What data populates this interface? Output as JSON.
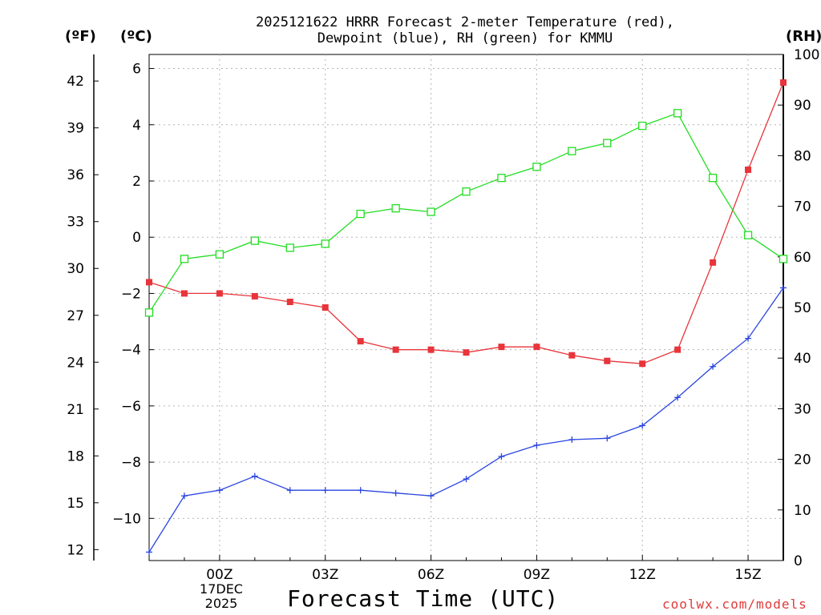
{
  "chart_data": {
    "type": "line",
    "title_line1": "2025121622 HRRR Forecast 2-meter Temperature (red),",
    "title_line2": "Dewpoint (blue), RH (green) for KMMU",
    "xlabel": "Forecast Time (UTC)",
    "date_line1": "17DEC",
    "date_line2": "2025",
    "credit": "coolwx.com/models",
    "unit_f": "(ºF)",
    "unit_c": "(ºC)",
    "unit_rh": "(RH)",
    "grid": true,
    "x_hours": [
      -2,
      -1,
      0,
      1,
      2,
      3,
      4,
      5,
      6,
      7,
      8,
      9,
      10,
      11,
      12,
      13,
      14,
      15,
      16
    ],
    "x_range": [
      -2,
      16
    ],
    "x_ticks": [
      {
        "hour": 0,
        "label": "00Z"
      },
      {
        "hour": 3,
        "label": "03Z"
      },
      {
        "hour": 6,
        "label": "06Z"
      },
      {
        "hour": 9,
        "label": "09Z"
      },
      {
        "hour": 12,
        "label": "12Z"
      },
      {
        "hour": 15,
        "label": "15Z"
      }
    ],
    "y_celsius_range": [
      -11.5,
      6.5
    ],
    "y_celsius_ticks": [
      "-10",
      "-8",
      "-6",
      "-4",
      "-2",
      "0",
      "2",
      "4",
      "6"
    ],
    "y_fahrenheit_ticks": [
      "12",
      "15",
      "18",
      "21",
      "24",
      "27",
      "30",
      "33",
      "36",
      "39",
      "42"
    ],
    "y_rh_range": [
      0,
      100
    ],
    "y_rh_ticks": [
      "0",
      "10",
      "20",
      "30",
      "40",
      "50",
      "60",
      "70",
      "80",
      "90",
      "100"
    ],
    "series": [
      {
        "name": "2-meter Temperature",
        "units": "°C",
        "color": "#e8343a",
        "marker": "filled-square",
        "values": [
          -1.6,
          -2.0,
          -2.0,
          -2.1,
          -2.3,
          -2.5,
          -3.7,
          -4.0,
          -4.0,
          -4.1,
          -3.9,
          -3.9,
          -4.2,
          -4.4,
          -4.5,
          -4.0,
          -0.9,
          2.4,
          5.5
        ]
      },
      {
        "name": "Dewpoint",
        "units": "°C",
        "color": "#2b45e0",
        "marker": "plus",
        "values": [
          -11.2,
          -9.2,
          -9.0,
          -8.5,
          -9.0,
          -9.0,
          -9.0,
          -9.1,
          -9.2,
          -8.6,
          -7.8,
          -7.4,
          -7.2,
          -7.15,
          -6.7,
          -5.7,
          -4.6,
          -3.6,
          -1.8
        ]
      },
      {
        "name": "RH",
        "units": "%",
        "color": "#22dd22",
        "marker": "open-square",
        "values": [
          49,
          59.6,
          60.5,
          63.2,
          61.8,
          62.6,
          68.5,
          69.6,
          68.9,
          72.9,
          75.6,
          77.8,
          80.9,
          82.5,
          85.9,
          88.4,
          75.6,
          64.3,
          59.6
        ]
      }
    ]
  }
}
